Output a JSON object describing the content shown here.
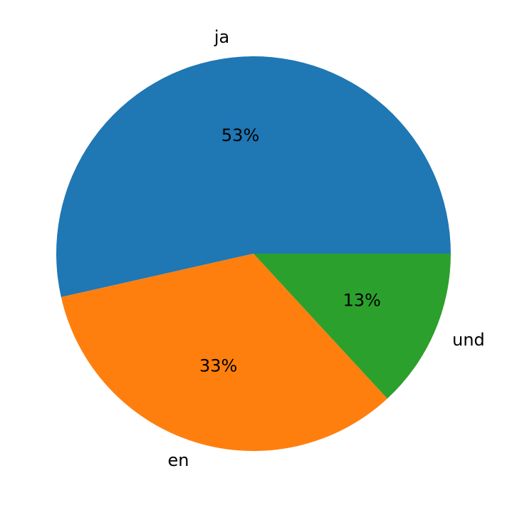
{
  "chart_data": {
    "type": "pie",
    "categories": [
      "ja",
      "en",
      "und"
    ],
    "values": [
      53,
      33,
      13
    ],
    "value_labels": [
      "53%",
      "33%",
      "13%"
    ],
    "colors": [
      "#1f77b4",
      "#ff7f0e",
      "#2ca02c"
    ],
    "start_angle": 0,
    "direction": "counterclockwise"
  }
}
